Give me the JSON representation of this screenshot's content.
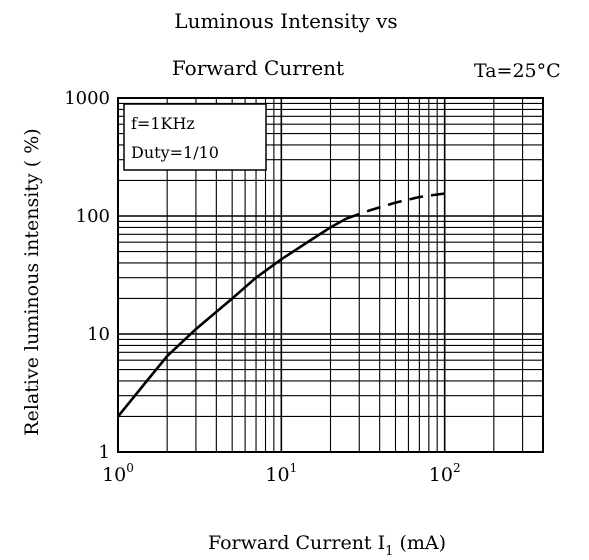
{
  "chart_data": {
    "type": "line",
    "title_lines": [
      "Luminous Intensity vs",
      "Forward Current"
    ],
    "condition": "Ta=25°C",
    "annotation_lines": [
      "f=1KHz",
      "Duty=1/10"
    ],
    "xlabel": {
      "main": "Forward Current   I",
      "sub": "1",
      "unit": " (mA)"
    },
    "ylabel": "Relative luminous intensity ( %)",
    "x_scale": "log",
    "y_scale": "log",
    "xlim": [
      1,
      400
    ],
    "ylim": [
      1,
      1000
    ],
    "grid": true,
    "x_ticks": [
      {
        "value": 1,
        "base": "10",
        "exp": "0"
      },
      {
        "value": 10,
        "base": "10",
        "exp": "1"
      },
      {
        "value": 100,
        "base": "10",
        "exp": "2"
      }
    ],
    "y_ticks": [
      {
        "value": 1,
        "label": "1"
      },
      {
        "value": 10,
        "label": "10"
      },
      {
        "value": 100,
        "label": "100"
      },
      {
        "value": 1000,
        "label": "1000"
      }
    ],
    "series": [
      {
        "style": "solid",
        "x": [
          1,
          1.5,
          2,
          3,
          5,
          7,
          10,
          15,
          20,
          25
        ],
        "y": [
          2,
          4,
          6.5,
          11,
          20,
          30,
          43,
          62,
          80,
          95
        ]
      },
      {
        "style": "dashed",
        "x": [
          25,
          35,
          50,
          70,
          100
        ],
        "y": [
          95,
          112,
          130,
          145,
          155
        ]
      }
    ]
  }
}
